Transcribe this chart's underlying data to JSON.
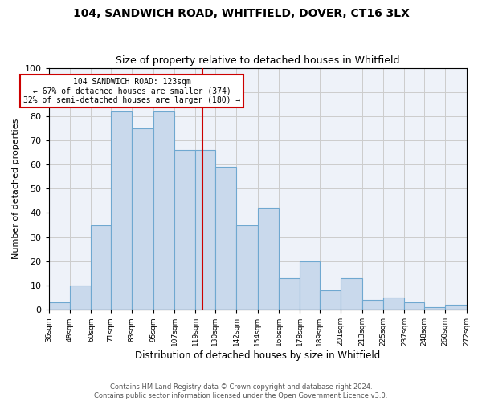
{
  "title1": "104, SANDWICH ROAD, WHITFIELD, DOVER, CT16 3LX",
  "title2": "Size of property relative to detached houses in Whitfield",
  "xlabel": "Distribution of detached houses by size in Whitfield",
  "ylabel": "Number of detached properties",
  "bin_edges": [
    36,
    48,
    60,
    71,
    83,
    95,
    107,
    119,
    130,
    142,
    154,
    166,
    178,
    189,
    201,
    213,
    225,
    237,
    248,
    260,
    272
  ],
  "bar_heights": [
    3,
    10,
    35,
    82,
    75,
    82,
    66,
    66,
    59,
    35,
    42,
    13,
    20,
    8,
    13,
    4,
    5,
    3,
    1,
    2
  ],
  "bar_color": "#c9d9ec",
  "bar_edge_color": "#6fa8d0",
  "vline_x": 123,
  "vline_color": "#cc0000",
  "annotation_text": "104 SANDWICH ROAD: 123sqm\n← 67% of detached houses are smaller (374)\n32% of semi-detached houses are larger (180) →",
  "annotation_box_color": "#ffffff",
  "annotation_box_edge_color": "#cc0000",
  "ylim": [
    0,
    100
  ],
  "yticks": [
    0,
    10,
    20,
    30,
    40,
    50,
    60,
    70,
    80,
    90,
    100
  ],
  "grid_color": "#cccccc",
  "background_color": "#eef2f9",
  "footer_line1": "Contains HM Land Registry data © Crown copyright and database right 2024.",
  "footer_line2": "Contains public sector information licensed under the Open Government Licence v3.0.",
  "tick_labels": [
    "36sqm",
    "48sqm",
    "60sqm",
    "71sqm",
    "83sqm",
    "95sqm",
    "107sqm",
    "119sqm",
    "130sqm",
    "142sqm",
    "154sqm",
    "166sqm",
    "178sqm",
    "189sqm",
    "201sqm",
    "213sqm",
    "225sqm",
    "237sqm",
    "248sqm",
    "260sqm",
    "272sqm"
  ]
}
